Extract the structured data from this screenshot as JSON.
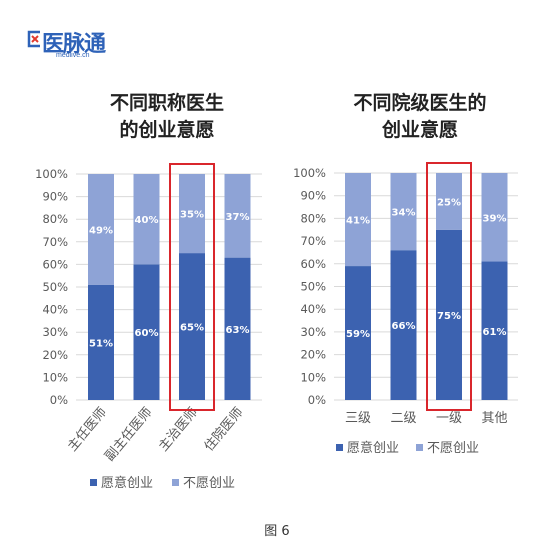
{
  "logo": {
    "text": "医脉通",
    "subtext": "medlive.cn"
  },
  "figure_label": "图 6",
  "colors": {
    "willing": "#3c62b0",
    "unwilling": "#8ea3d6",
    "highlight": "#d9262c",
    "grid": "#d9d9d9",
    "text": "#595959"
  },
  "chart_data": [
    {
      "type": "bar",
      "stacked": true,
      "title_lines": [
        "不同职称医生",
        "的创业意愿"
      ],
      "categories": [
        "主任医师",
        "副主任医师",
        "主治医师",
        "住院医师"
      ],
      "series": [
        {
          "name": "愿意创业",
          "values": [
            51,
            60,
            65,
            63
          ],
          "labels": [
            "51%",
            "60%",
            "65%",
            "63%"
          ]
        },
        {
          "name": "不愿创业",
          "values": [
            49,
            40,
            35,
            37
          ],
          "labels": [
            "49%",
            "40%",
            "35%",
            "37%"
          ]
        }
      ],
      "yticks": [
        "0%",
        "10%",
        "20%",
        "30%",
        "40%",
        "50%",
        "60%",
        "70%",
        "80%",
        "90%",
        "100%"
      ],
      "ylim": [
        0,
        100
      ],
      "highlighted_category": "主治医师",
      "xtick_rotation": "rotated",
      "legend_position": "bottom"
    },
    {
      "type": "bar",
      "stacked": true,
      "title_lines": [
        "不同院级医生的",
        "创业意愿"
      ],
      "categories": [
        "三级",
        "二级",
        "一级",
        "其他"
      ],
      "series": [
        {
          "name": "愿意创业",
          "values": [
            59,
            66,
            75,
            61
          ],
          "labels": [
            "59%",
            "66%",
            "75%",
            "61%"
          ]
        },
        {
          "name": "不愿创业",
          "values": [
            41,
            34,
            25,
            39
          ],
          "labels": [
            "41%",
            "34%",
            "25%",
            "39%"
          ]
        }
      ],
      "yticks": [
        "0%",
        "10%",
        "20%",
        "30%",
        "40%",
        "50%",
        "60%",
        "70%",
        "80%",
        "90%",
        "100%"
      ],
      "ylim": [
        0,
        100
      ],
      "highlighted_category": "一级",
      "xtick_rotation": "horizontal",
      "legend_position": "bottom"
    }
  ]
}
